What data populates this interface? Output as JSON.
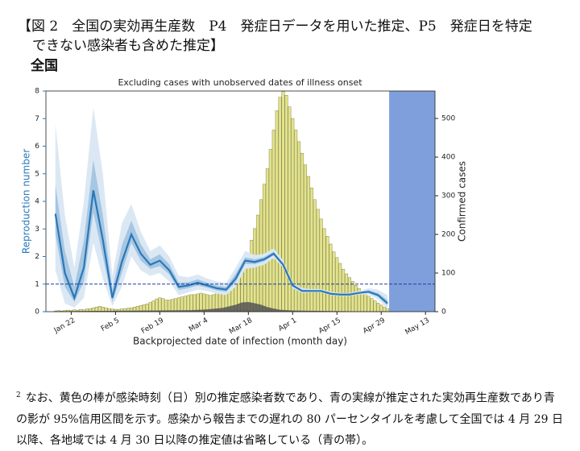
{
  "header": {
    "title_lines": [
      "【図 2　全国の実効再生産数　P4　発症日データを用いた推定、P5　発症日を特定",
      "できない感染者も含めた推定】"
    ],
    "region": "全国"
  },
  "chart_data": {
    "type": "combo",
    "title": "Excluding cases with unobserved dates of illness onset",
    "xlabel": "Backprojected date of infection (month day)",
    "ylabel": "Reproduction number",
    "y2label": "Confirmed cases",
    "xlim": [
      14,
      137
    ],
    "xticks": [
      {
        "value": 22,
        "label": "Jan 22"
      },
      {
        "value": 36,
        "label": "Feb 5"
      },
      {
        "value": 50,
        "label": "Feb 19"
      },
      {
        "value": 64,
        "label": "Mar 4"
      },
      {
        "value": 78,
        "label": "Mar 18"
      },
      {
        "value": 92,
        "label": "Apr 1"
      },
      {
        "value": 106,
        "label": "Apr 15"
      },
      {
        "value": 120,
        "label": "Apr 29"
      },
      {
        "value": 134,
        "label": "May 13"
      }
    ],
    "ylim": [
      0,
      8
    ],
    "yticks": [
      0,
      1,
      2,
      3,
      4,
      5,
      6,
      7,
      8
    ],
    "y2lim": [
      0,
      571
    ],
    "y2ticks": [
      0,
      100,
      200,
      300,
      400,
      500
    ],
    "hline": 1,
    "hline_color": "#1f3fa0",
    "shade_from": 122.5,
    "shade_color": "#7f9fdc",
    "series": [
      {
        "type": "bar",
        "axis": "y2",
        "color": "#e3e38c",
        "x": [
          17,
          18,
          19,
          20,
          21,
          22,
          23,
          24,
          25,
          26,
          27,
          28,
          29,
          30,
          31,
          32,
          33,
          34,
          35,
          36,
          37,
          38,
          39,
          40,
          41,
          42,
          43,
          44,
          45,
          46,
          47,
          48,
          49,
          50,
          51,
          52,
          53,
          54,
          55,
          56,
          57,
          58,
          59,
          60,
          61,
          62,
          63,
          64,
          65,
          66,
          67,
          68,
          69,
          70,
          71,
          72,
          73,
          74,
          75,
          76,
          77,
          78,
          79,
          80,
          81,
          82,
          83,
          84,
          85,
          86,
          87,
          88,
          89,
          90,
          91,
          92,
          93,
          94,
          95,
          96,
          97,
          98,
          99,
          100,
          101,
          102,
          103,
          104,
          105,
          106,
          107,
          108,
          109,
          110,
          111,
          112,
          113,
          114,
          115,
          116,
          117,
          118,
          119,
          120,
          121,
          122,
          123,
          124,
          125
        ],
        "values": [
          2,
          3,
          2,
          3,
          4,
          3,
          5,
          4,
          6,
          5,
          7,
          8,
          10,
          12,
          14,
          12,
          10,
          8,
          7,
          6,
          6,
          7,
          8,
          9,
          10,
          12,
          14,
          16,
          18,
          20,
          24,
          28,
          33,
          36,
          34,
          30,
          30,
          32,
          34,
          36,
          38,
          40,
          42,
          44,
          44,
          46,
          48,
          46,
          44,
          42,
          44,
          48,
          52,
          56,
          60,
          66,
          72,
          80,
          90,
          100,
          120,
          150,
          185,
          215,
          250,
          290,
          330,
          370,
          420,
          470,
          520,
          555,
          570,
          560,
          530,
          500,
          470,
          440,
          410,
          380,
          350,
          320,
          290,
          265,
          240,
          215,
          195,
          175,
          155,
          140,
          125,
          110,
          98,
          88,
          78,
          68,
          60,
          52,
          45,
          40,
          34,
          28,
          22,
          17,
          12,
          8,
          5,
          3,
          1
        ]
      },
      {
        "type": "area",
        "axis": "y2",
        "color": "#555555",
        "x": [
          17,
          30,
          50,
          60,
          65,
          70,
          74,
          76,
          78,
          80,
          82,
          84,
          86,
          88,
          92,
          100,
          110,
          120,
          125
        ],
        "values": [
          1,
          2,
          3,
          4,
          6,
          10,
          18,
          24,
          25,
          22,
          18,
          12,
          8,
          5,
          3,
          2,
          1,
          1,
          0
        ]
      },
      {
        "type": "band",
        "color": "#dbe8f4",
        "x": [
          17,
          20,
          23,
          26,
          29,
          32,
          35,
          38,
          41,
          44,
          47,
          50,
          53,
          56,
          59,
          62,
          65,
          68,
          71,
          74,
          77,
          80,
          83,
          86,
          89,
          92,
          95,
          98,
          101,
          104,
          107,
          110,
          113,
          116,
          119,
          122
        ],
        "low": [
          1.5,
          0.3,
          0.15,
          0.5,
          2.5,
          1.2,
          0.2,
          0.9,
          2.0,
          1.5,
          1.3,
          1.4,
          1.1,
          0.6,
          0.7,
          0.8,
          0.75,
          0.65,
          0.6,
          0.9,
          1.55,
          1.6,
          1.7,
          1.95,
          1.6,
          0.85,
          0.68,
          0.7,
          0.7,
          0.6,
          0.57,
          0.57,
          0.62,
          0.62,
          0.45,
          0.1
        ],
        "high": [
          6.8,
          3.5,
          1.6,
          4.0,
          7.4,
          5.0,
          1.3,
          3.2,
          3.9,
          2.9,
          2.2,
          2.4,
          2.0,
          1.3,
          1.25,
          1.35,
          1.2,
          1.1,
          1.05,
          1.6,
          2.2,
          2.05,
          2.1,
          2.3,
          1.85,
          1.05,
          0.85,
          0.82,
          0.82,
          0.72,
          0.68,
          0.68,
          0.75,
          0.85,
          0.8,
          0.6
        ]
      },
      {
        "type": "band",
        "color": "#a6c6e2",
        "x": [
          17,
          20,
          23,
          26,
          29,
          32,
          35,
          38,
          41,
          44,
          47,
          50,
          53,
          56,
          59,
          62,
          65,
          68,
          71,
          74,
          77,
          80,
          83,
          86,
          89,
          92,
          95,
          98,
          101,
          104,
          107,
          110,
          113,
          116,
          119,
          122
        ],
        "low": [
          2.8,
          0.9,
          0.35,
          1.1,
          3.6,
          2.0,
          0.35,
          1.4,
          2.5,
          1.85,
          1.55,
          1.65,
          1.35,
          0.78,
          0.85,
          0.95,
          0.87,
          0.77,
          0.72,
          1.07,
          1.73,
          1.72,
          1.82,
          2.05,
          1.66,
          0.91,
          0.72,
          0.73,
          0.73,
          0.63,
          0.6,
          0.6,
          0.66,
          0.68,
          0.54,
          0.22
        ],
        "high": [
          4.6,
          2.2,
          0.9,
          2.6,
          5.5,
          3.5,
          0.8,
          2.4,
          3.3,
          2.45,
          1.9,
          2.08,
          1.72,
          1.05,
          1.07,
          1.17,
          1.05,
          0.95,
          0.9,
          1.38,
          1.97,
          1.9,
          1.98,
          2.18,
          1.76,
          1.0,
          0.8,
          0.78,
          0.78,
          0.68,
          0.65,
          0.65,
          0.71,
          0.78,
          0.68,
          0.42
        ]
      },
      {
        "type": "line",
        "color": "#2a78b8",
        "x": [
          17,
          20,
          23,
          26,
          29,
          32,
          35,
          38,
          41,
          44,
          47,
          50,
          53,
          56,
          59,
          62,
          65,
          68,
          71,
          74,
          77,
          80,
          83,
          86,
          89,
          92,
          95,
          98,
          101,
          104,
          107,
          110,
          113,
          116,
          119,
          122
        ],
        "values": [
          3.55,
          1.4,
          0.5,
          1.6,
          4.4,
          2.6,
          0.5,
          1.8,
          2.8,
          2.1,
          1.7,
          1.85,
          1.5,
          0.9,
          0.95,
          1.05,
          0.95,
          0.85,
          0.8,
          1.2,
          1.85,
          1.8,
          1.9,
          2.1,
          1.7,
          0.95,
          0.75,
          0.75,
          0.75,
          0.65,
          0.62,
          0.62,
          0.68,
          0.72,
          0.6,
          0.3
        ]
      }
    ]
  },
  "footnote": {
    "marker": "2",
    "text": "なお、黄色の棒が感染時刻（日）別の推定感染者数であり、青の実線が推定された実効再生産数であり青の影が 95%信用区間を示す。感染から報告までの遅れの 80 パーセンタイルを考慮して全国では 4 月 29 日以降、各地域では 4 月 30 日以降の推定値は省略している（青の帯）。"
  }
}
